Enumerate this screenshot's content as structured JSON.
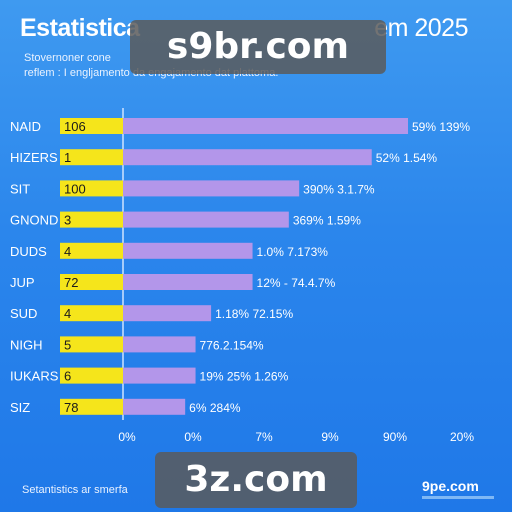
{
  "header": {
    "title_start": "Estatistica",
    "title_end": "em 2025",
    "subtitle_line1": "Stovernoner cone",
    "subtitle_line2": "reflem : I engljamento da engajamento dat plattoma."
  },
  "watermarks": {
    "top": "s9br.com",
    "bottom": "3z.com"
  },
  "footer": {
    "left": "Setantistics ar smerfa",
    "right": "9pe.com"
  },
  "colors": {
    "background": "#2b86ec",
    "label_box": "#f5e51b",
    "bar": "#b396ea",
    "text": "#ffffff"
  },
  "chart_data": {
    "type": "bar",
    "orientation": "horizontal",
    "categories": [
      "NAID",
      "HIZERS",
      "SIT",
      "GNOND",
      "DUDS",
      "JUP",
      "SUD",
      "NIGH",
      "IUKARS",
      "SIZ"
    ],
    "box_values": [
      "106",
      "1",
      "100",
      "3",
      "4",
      "72",
      "4",
      "5",
      "6",
      "78"
    ],
    "values": [
      55,
      48,
      34,
      32,
      25,
      25,
      17,
      14,
      14,
      12
    ],
    "bar_labels": [
      "59%  139%",
      "52%       1.54%",
      "390%        3.1.7%",
      "369%        1.59%",
      "1.0%        7.173%",
      "12% - 74.4.7%",
      "1.18%        72.15%",
      "776.2.154%",
      "19%  25%  1.26%",
      "6%  284%"
    ],
    "x_tick_labels": [
      "0%",
      "0%",
      "7%",
      "9%",
      "90%",
      "20%"
    ],
    "grid": false
  }
}
